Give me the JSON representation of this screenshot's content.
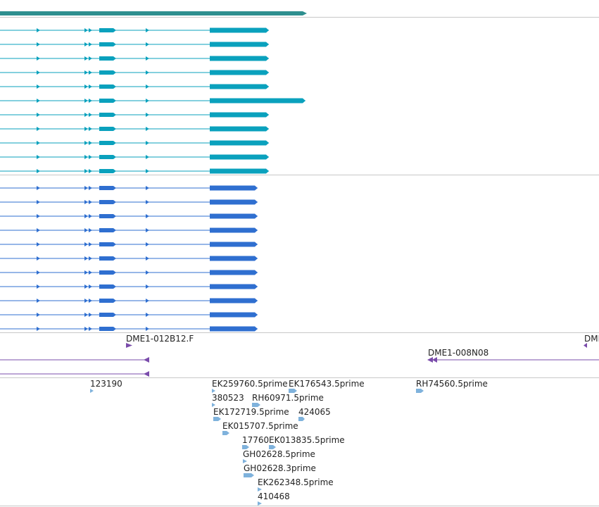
{
  "colors": {
    "top_track": "#2e8f8f",
    "transcript_a": "#0aa1bd",
    "transcript_b": "#2f6fd0",
    "clone_track": "#7a4cab",
    "est_track": "#7fb2dc",
    "divider": "#c8c8c8",
    "label_text": "#222222"
  },
  "tracks": {
    "clones": {
      "labels": [
        "DME1-012B12.F",
        "DME1-008N08",
        "DMI"
      ]
    },
    "ests": {
      "labels": [
        "123190",
        "EK259760.5prime",
        "EK176543.5prime",
        "RH74560.5prime",
        "380523",
        "RH60971.5prime",
        "EK172719.5prime",
        "424065",
        "EK015707.5prime",
        "17760",
        "EK013835.5prime",
        "GH02628.5prime",
        "GH02628.3prime",
        "EK262348.5prime",
        "410468"
      ]
    }
  }
}
